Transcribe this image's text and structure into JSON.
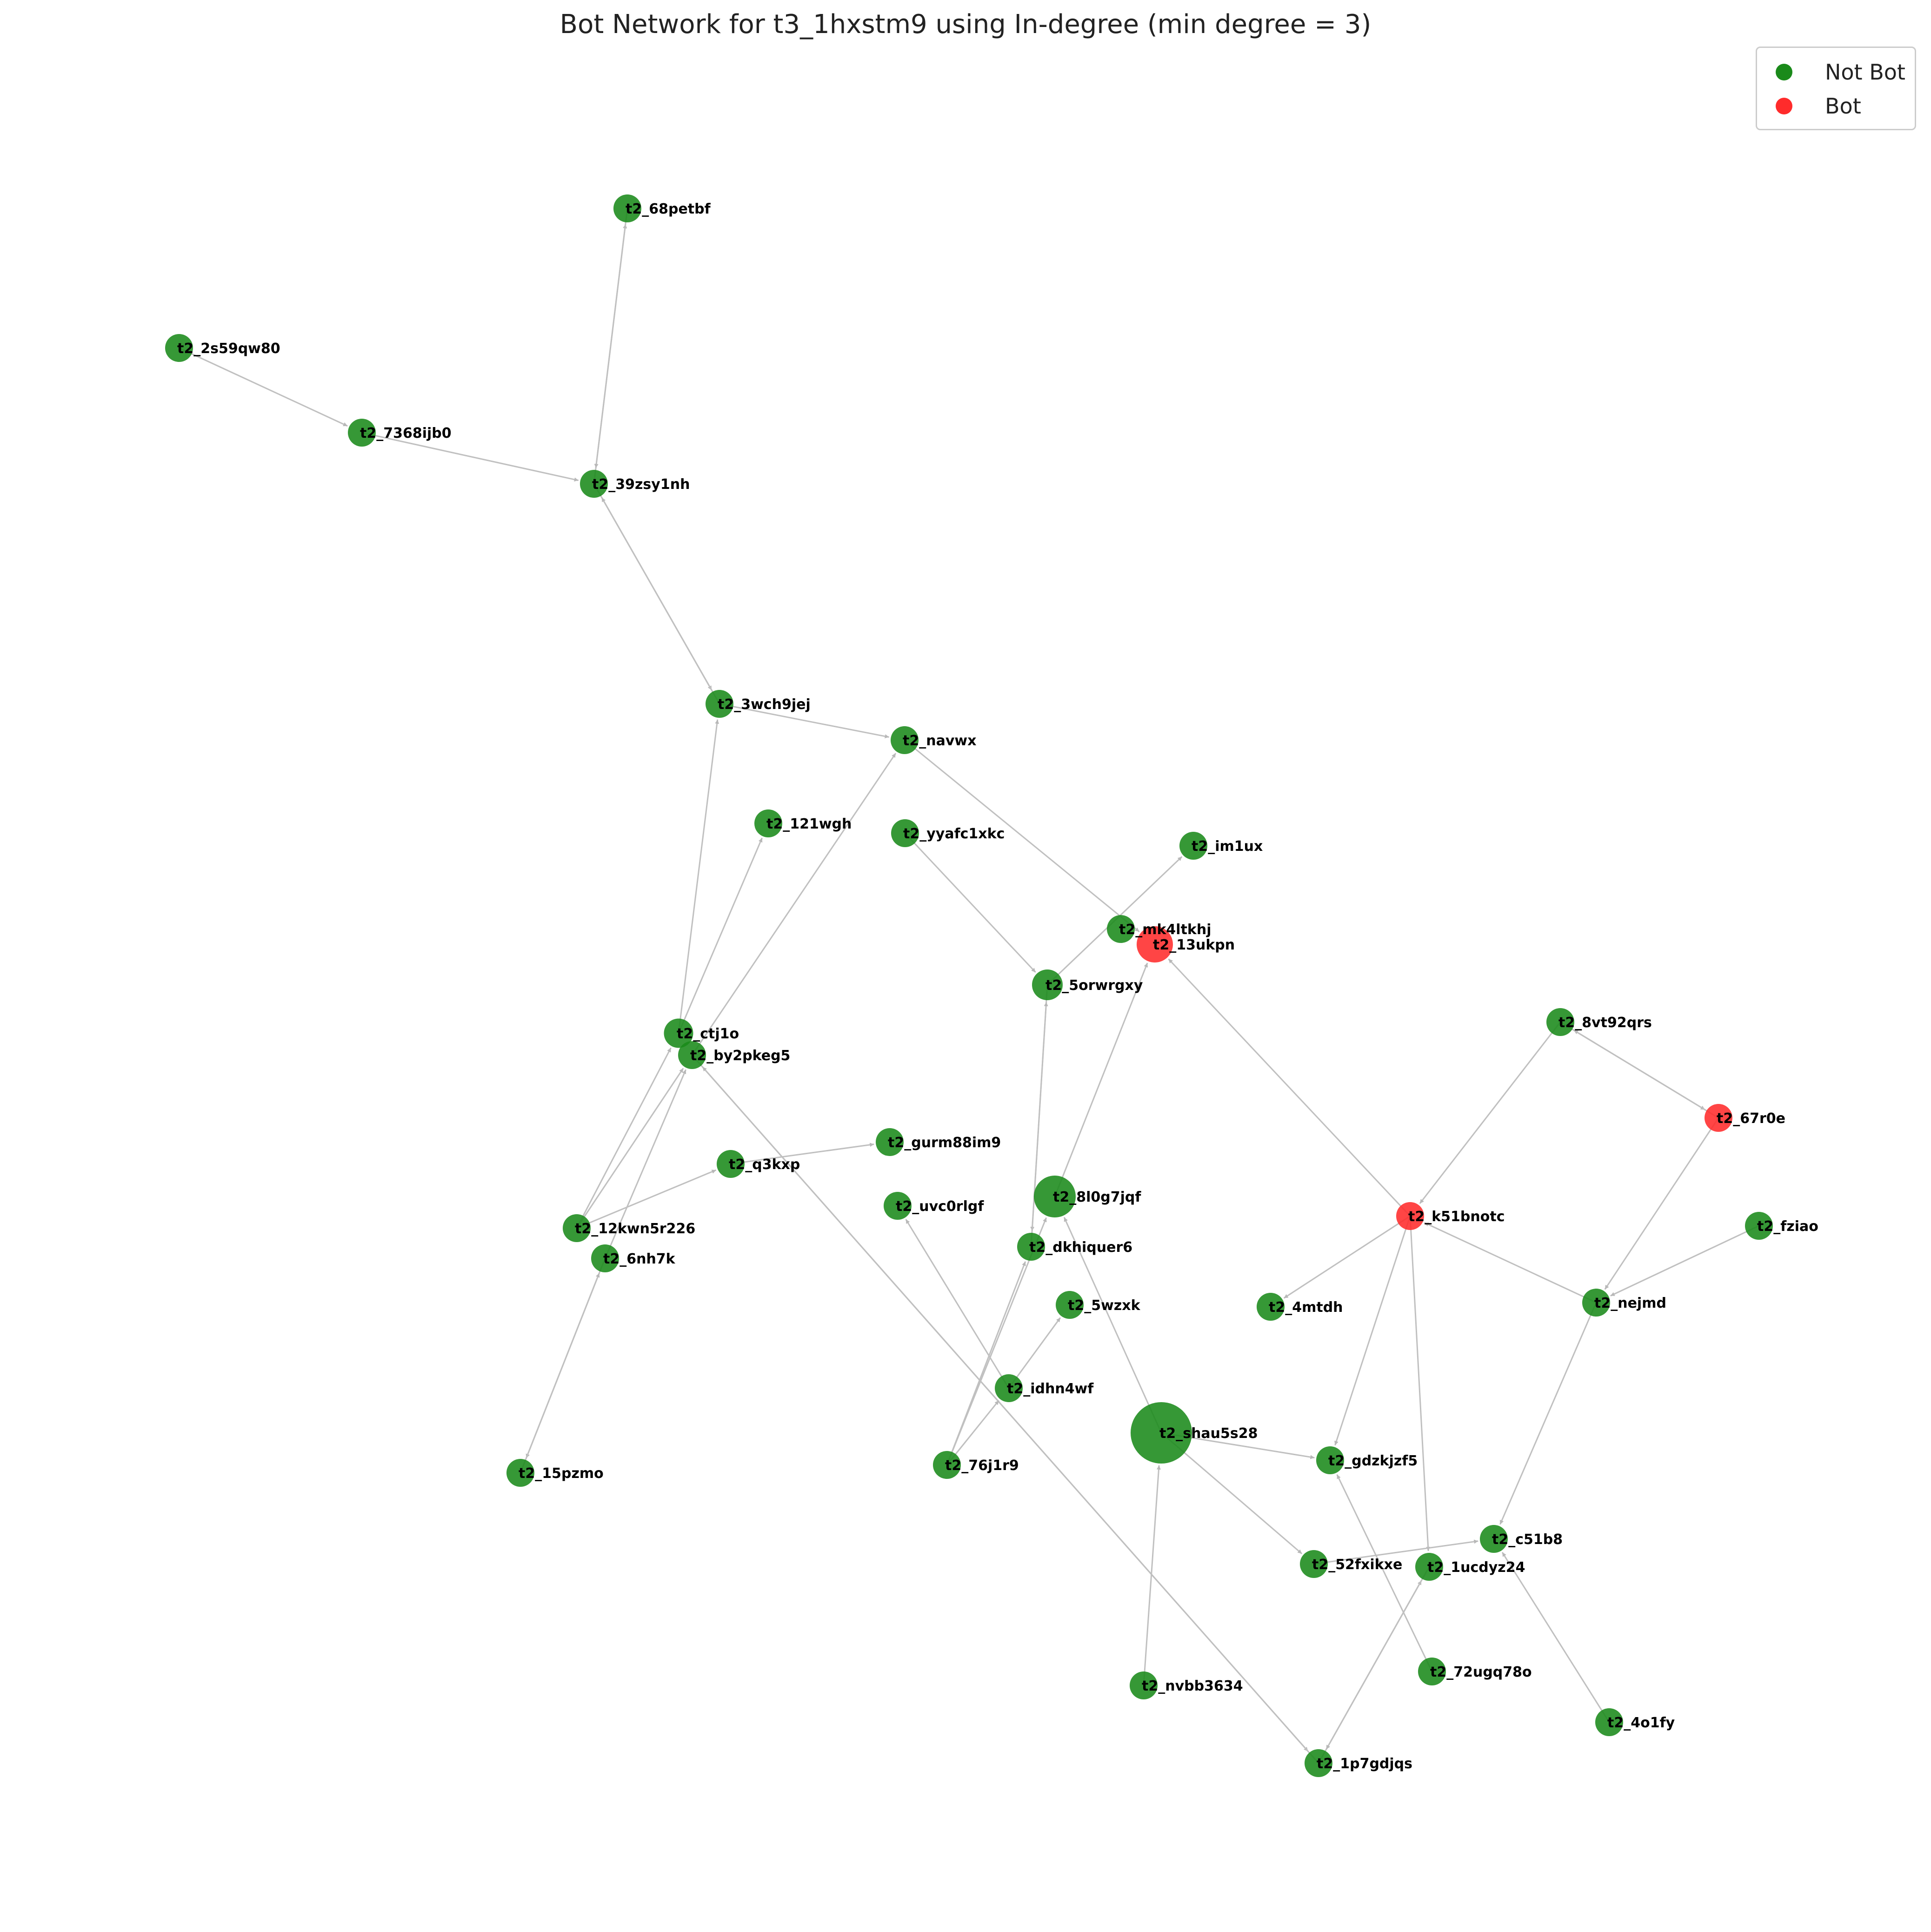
{
  "title": "Bot Network for t3_1hxstm9 using In-degree (min degree = 3)",
  "colors": {
    "not_bot": "#1a8a1a",
    "bot": "#ff2b2b",
    "edge": "#c0c0c0"
  },
  "legend": {
    "not_bot_label": "Not Bot",
    "bot_label": "Bot"
  },
  "nodes": [
    {
      "id": "t2_68petbf",
      "bot": false,
      "size": 1
    },
    {
      "id": "t2_2s59qw80",
      "bot": false,
      "size": 1
    },
    {
      "id": "t2_7368ijb0",
      "bot": false,
      "size": 1
    },
    {
      "id": "t2_39zsy1nh",
      "bot": false,
      "size": 1
    },
    {
      "id": "t2_3wch9jej",
      "bot": false,
      "size": 1
    },
    {
      "id": "t2_navwx",
      "bot": false,
      "size": 1
    },
    {
      "id": "t2_121wgh",
      "bot": false,
      "size": 1
    },
    {
      "id": "t2_yyafc1xkc",
      "bot": false,
      "size": 1
    },
    {
      "id": "t2_im1ux",
      "bot": false,
      "size": 1
    },
    {
      "id": "t2_mk4ltkhj",
      "bot": false,
      "size": 1
    },
    {
      "id": "t2_13ukpn",
      "bot": true,
      "size": 1.3
    },
    {
      "id": "t2_5orwrgxy",
      "bot": false,
      "size": 1.1
    },
    {
      "id": "t2_ctj1o",
      "bot": false,
      "size": 1.05
    },
    {
      "id": "t2_by2pkeg5",
      "bot": false,
      "size": 1
    },
    {
      "id": "t2_8vt92qrs",
      "bot": false,
      "size": 1
    },
    {
      "id": "t2_67r0e",
      "bot": true,
      "size": 1
    },
    {
      "id": "t2_gurm88im9",
      "bot": false,
      "size": 1
    },
    {
      "id": "t2_q3kxp",
      "bot": false,
      "size": 1
    },
    {
      "id": "t2_8l0g7jqf",
      "bot": false,
      "size": 1.5
    },
    {
      "id": "t2_uvc0rlgf",
      "bot": false,
      "size": 1
    },
    {
      "id": "t2_k51bnotc",
      "bot": true,
      "size": 1
    },
    {
      "id": "t2_fziao",
      "bot": false,
      "size": 1
    },
    {
      "id": "t2_12kwn5r226",
      "bot": false,
      "size": 1
    },
    {
      "id": "t2_dkhiquer6",
      "bot": false,
      "size": 1
    },
    {
      "id": "t2_6nh7k",
      "bot": false,
      "size": 1
    },
    {
      "id": "t2_5wzxk",
      "bot": false,
      "size": 1
    },
    {
      "id": "t2_4mtdh",
      "bot": false,
      "size": 1
    },
    {
      "id": "t2_nejmd",
      "bot": false,
      "size": 1
    },
    {
      "id": "t2_idhn4wf",
      "bot": false,
      "size": 1
    },
    {
      "id": "t2_shau5s28",
      "bot": false,
      "size": 2.2
    },
    {
      "id": "t2_76j1r9",
      "bot": false,
      "size": 1
    },
    {
      "id": "t2_15pzmo",
      "bot": false,
      "size": 1
    },
    {
      "id": "t2_gdzkjzf5",
      "bot": false,
      "size": 1
    },
    {
      "id": "t2_c51b8",
      "bot": false,
      "size": 1
    },
    {
      "id": "t2_52fxikxe",
      "bot": false,
      "size": 1
    },
    {
      "id": "t2_1ucdyz24",
      "bot": false,
      "size": 1
    },
    {
      "id": "t2_72ugq78o",
      "bot": false,
      "size": 1
    },
    {
      "id": "t2_4o1fy",
      "bot": false,
      "size": 1
    },
    {
      "id": "t2_nvbb3634",
      "bot": false,
      "size": 1
    },
    {
      "id": "t2_1p7gdjqs",
      "bot": false,
      "size": 1
    }
  ],
  "edges": [
    {
      "from": "t2_2s59qw80",
      "to": "t2_7368ijb0"
    },
    {
      "from": "t2_7368ijb0",
      "to": "t2_39zsy1nh"
    },
    {
      "from": "t2_39zsy1nh",
      "to": "t2_68petbf"
    },
    {
      "from": "t2_68petbf",
      "to": "t2_39zsy1nh"
    },
    {
      "from": "t2_39zsy1nh",
      "to": "t2_3wch9jej"
    },
    {
      "from": "t2_3wch9jej",
      "to": "t2_39zsy1nh"
    },
    {
      "from": "t2_3wch9jej",
      "to": "t2_navwx"
    },
    {
      "from": "t2_navwx",
      "to": "t2_13ukpn"
    },
    {
      "from": "t2_by2pkeg5",
      "to": "t2_navwx"
    },
    {
      "from": "t2_ctj1o",
      "to": "t2_121wgh"
    },
    {
      "from": "t2_ctj1o",
      "to": "t2_3wch9jej"
    },
    {
      "from": "t2_12kwn5r226",
      "to": "t2_ctj1o"
    },
    {
      "from": "t2_12kwn5r226",
      "to": "t2_by2pkeg5"
    },
    {
      "from": "t2_12kwn5r226",
      "to": "t2_q3kxp"
    },
    {
      "from": "t2_6nh7k",
      "to": "t2_by2pkeg5"
    },
    {
      "from": "t2_6nh7k",
      "to": "t2_15pzmo"
    },
    {
      "from": "t2_15pzmo",
      "to": "t2_6nh7k"
    },
    {
      "from": "t2_q3kxp",
      "to": "t2_gurm88im9"
    },
    {
      "from": "t2_yyafc1xkc",
      "to": "t2_5orwrgxy"
    },
    {
      "from": "t2_5orwrgxy",
      "to": "t2_im1ux"
    },
    {
      "from": "t2_5orwrgxy",
      "to": "t2_dkhiquer6"
    },
    {
      "from": "t2_dkhiquer6",
      "to": "t2_5orwrgxy"
    },
    {
      "from": "t2_8l0g7jqf",
      "to": "t2_13ukpn"
    },
    {
      "from": "t2_k51bnotc",
      "to": "t2_13ukpn"
    },
    {
      "from": "t2_8vt92qrs",
      "to": "t2_k51bnotc"
    },
    {
      "from": "t2_8vt92qrs",
      "to": "t2_67r0e"
    },
    {
      "from": "t2_67r0e",
      "to": "t2_8vt92qrs"
    },
    {
      "from": "t2_67r0e",
      "to": "t2_nejmd"
    },
    {
      "from": "t2_fziao",
      "to": "t2_nejmd"
    },
    {
      "from": "t2_nejmd",
      "to": "t2_k51bnotc"
    },
    {
      "from": "t2_nejmd",
      "to": "t2_c51b8"
    },
    {
      "from": "t2_k51bnotc",
      "to": "t2_4mtdh"
    },
    {
      "from": "t2_k51bnotc",
      "to": "t2_gdzkjzf5"
    },
    {
      "from": "t2_k51bnotc",
      "to": "t2_1ucdyz24"
    },
    {
      "from": "t2_shau5s28",
      "to": "t2_8l0g7jqf"
    },
    {
      "from": "t2_shau5s28",
      "to": "t2_gdzkjzf5"
    },
    {
      "from": "t2_shau5s28",
      "to": "t2_52fxikxe"
    },
    {
      "from": "t2_nvbb3634",
      "to": "t2_shau5s28"
    },
    {
      "from": "t2_72ugq78o",
      "to": "t2_gdzkjzf5"
    },
    {
      "from": "t2_4o1fy",
      "to": "t2_c51b8"
    },
    {
      "from": "t2_52fxikxe",
      "to": "t2_c51b8"
    },
    {
      "from": "t2_1p7gdjqs",
      "to": "t2_1ucdyz24"
    },
    {
      "from": "t2_1ucdyz24",
      "to": "t2_1p7gdjqs"
    },
    {
      "from": "t2_by2pkeg5",
      "to": "t2_1p7gdjqs"
    },
    {
      "from": "t2_1p7gdjqs",
      "to": "t2_by2pkeg5"
    },
    {
      "from": "t2_idhn4wf",
      "to": "t2_5wzxk"
    },
    {
      "from": "t2_idhn4wf",
      "to": "t2_uvc0rlgf"
    },
    {
      "from": "t2_76j1r9",
      "to": "t2_dkhiquer6"
    },
    {
      "from": "t2_76j1r9",
      "to": "t2_idhn4wf"
    },
    {
      "from": "t2_76j1r9",
      "to": "t2_8l0g7jqf"
    }
  ]
}
